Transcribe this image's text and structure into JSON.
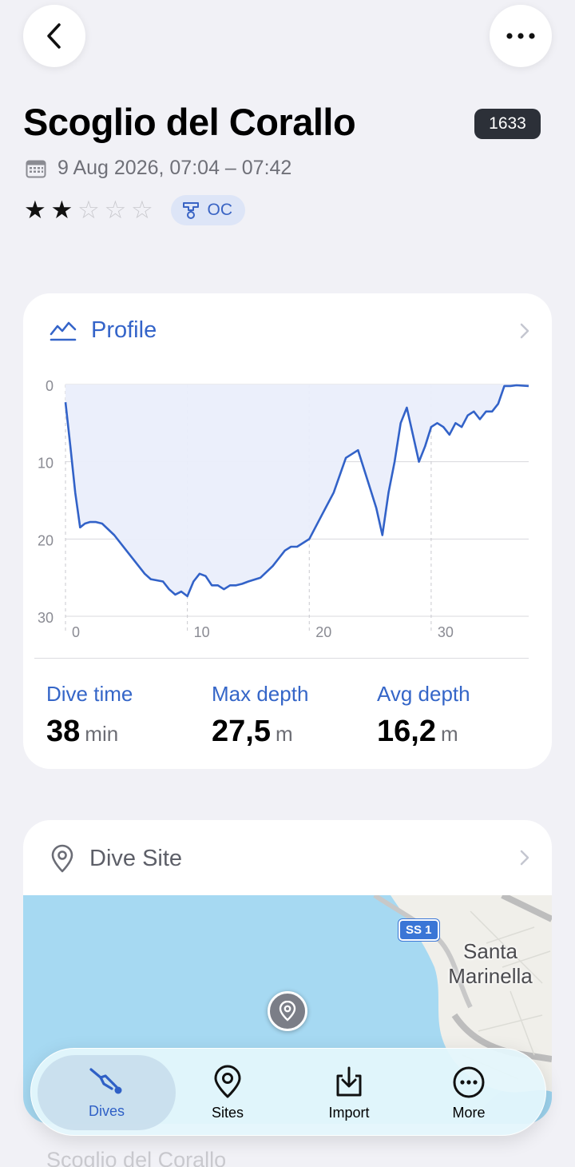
{
  "header": {
    "title": "Scoglio del Corallo",
    "dive_number": "1633",
    "date_range": "9 Aug 2026, 07:04 – 07:42",
    "rating": 2,
    "rating_max": 5,
    "circuit_badge": "OC"
  },
  "profile_card": {
    "title": "Profile",
    "stats": [
      {
        "label": "Dive time",
        "value": "38",
        "unit": "min"
      },
      {
        "label": "Max depth",
        "value": "27,5",
        "unit": "m"
      },
      {
        "label": "Avg depth",
        "value": "16,2",
        "unit": "m"
      }
    ]
  },
  "site_card": {
    "title": "Dive Site",
    "map_town_label": "Santa\nMarinella",
    "road_label": "SS 1",
    "preview_title": "Scoglio del Corallo"
  },
  "tabs": [
    {
      "label": "Dives",
      "icon": "diver-icon",
      "active": true
    },
    {
      "label": "Sites",
      "icon": "map-pin-icon",
      "active": false
    },
    {
      "label": "Import",
      "icon": "import-icon",
      "active": false
    },
    {
      "label": "More",
      "icon": "more-circle-icon",
      "active": false
    }
  ],
  "colors": {
    "accent": "#3464c9",
    "background": "#f1f1f6",
    "chart_line": "#3262c8",
    "chart_fill": "#eaeefb",
    "sea": "#a6d9f2"
  },
  "chart_data": {
    "type": "area",
    "xlabel": "",
    "ylabel": "",
    "xlim": [
      0,
      38
    ],
    "ylim": [
      0,
      30
    ],
    "y_inverted": true,
    "x_ticks": [
      0,
      10,
      20,
      30
    ],
    "y_ticks": [
      0,
      10,
      20,
      30
    ],
    "grid": true,
    "series": [
      {
        "x": [
          0,
          0.4,
          0.8,
          1.2,
          1.6,
          2,
          2.5,
          3,
          4,
          5,
          6,
          6.5,
          7,
          8,
          8.5,
          9,
          9.5,
          10,
          10.5,
          11,
          11.5,
          12,
          12.5,
          13,
          13.5,
          14,
          14.5,
          15,
          16,
          17,
          17.5,
          18,
          18.5,
          19,
          20,
          21,
          22,
          23,
          24,
          25,
          25.5,
          26,
          26.5,
          27,
          27.5,
          28,
          28.5,
          29,
          29.5,
          30,
          30.5,
          31,
          31.5,
          32,
          32.5,
          33,
          33.5,
          34,
          34.5,
          35,
          35.5,
          36,
          36.5,
          37,
          38
        ],
        "values": [
          2.3,
          8,
          14,
          18.5,
          18,
          17.8,
          17.8,
          18,
          19.5,
          21.5,
          23.5,
          24.5,
          25.2,
          25.5,
          26.5,
          27.2,
          26.8,
          27.4,
          25.5,
          24.5,
          24.8,
          26,
          26,
          26.5,
          26,
          26,
          25.8,
          25.5,
          25,
          23.5,
          22.5,
          21.5,
          21,
          21,
          20,
          17,
          14,
          9.5,
          8.5,
          13.5,
          16,
          19.5,
          14,
          10,
          5,
          3,
          6.5,
          10,
          8,
          5.5,
          5,
          5.5,
          6.5,
          5,
          5.5,
          4,
          3.5,
          4.5,
          3.5,
          3.5,
          2.5,
          0.2,
          0.2,
          0.1,
          0.2
        ]
      }
    ]
  }
}
